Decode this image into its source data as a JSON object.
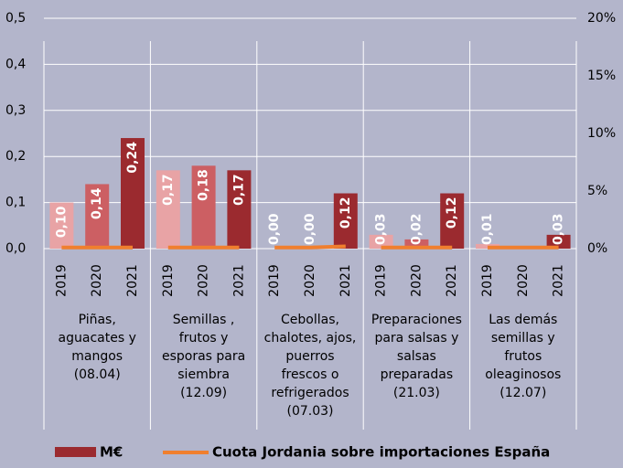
{
  "chart_data": {
    "type": "bar",
    "groups": [
      [
        "Piñas,",
        "aguacates y",
        "mangos",
        "(08.04)"
      ],
      [
        "Semillas ,",
        "frutos y",
        "esporas para",
        "siembra",
        "(12.09)"
      ],
      [
        "Cebollas,",
        "chalotes, ajos,",
        "puerros",
        "frescos o",
        "refrigerados",
        "(07.03)"
      ],
      [
        "Preparaciones",
        "para salsas y",
        "salsas",
        "preparadas",
        "(21.03)"
      ],
      [
        "Las demás",
        "semillas y",
        "frutos",
        "oleaginosos",
        "(12.07)"
      ]
    ],
    "years": [
      "2019",
      "2020",
      "2021"
    ],
    "year_colors": [
      "#e8a3a5",
      "#cc5f63",
      "#9b2a2f"
    ],
    "series": [
      {
        "name": "M€",
        "color": "#9b2a2f",
        "values": [
          0.1,
          0.14,
          0.24,
          0.17,
          0.18,
          0.17,
          0.0,
          0.0,
          0.12,
          0.03,
          0.02,
          0.12,
          0.01,
          0.0,
          0.03
        ],
        "value_labels": [
          "0,10",
          "0,14",
          "0,24",
          "0,17",
          "0,18",
          "0,17",
          "0,00",
          "0,00",
          "0,12",
          "0,03",
          "0,02",
          "0,12",
          "0,01",
          null,
          "0,03"
        ]
      },
      {
        "name": "Cuota Jordania sobre importaciones España",
        "type": "line",
        "axis": "y2",
        "color": "#f07f2e",
        "values": [
          0.1,
          0.1,
          0.1,
          0.1,
          0.1,
          0.1,
          0.1,
          0.1,
          0.2,
          0.1,
          0.1,
          0.1,
          0.1,
          0.1,
          0.1
        ]
      }
    ],
    "ylim": [
      0,
      0.5
    ],
    "yticks": [
      {
        "value": 0,
        "label": "0,0"
      },
      {
        "value": 0.1,
        "label": "0,1"
      },
      {
        "value": 0.2,
        "label": "0,2"
      },
      {
        "value": 0.3,
        "label": "0,3"
      },
      {
        "value": 0.4,
        "label": "0,4"
      },
      {
        "value": 0.5,
        "label": "0,5"
      }
    ],
    "y2lim": [
      0,
      20
    ],
    "y2ticks": [
      {
        "value": 0,
        "label": "0%"
      },
      {
        "value": 5,
        "label": "5%"
      },
      {
        "value": 10,
        "label": "10%"
      },
      {
        "value": 15,
        "label": "15%"
      },
      {
        "value": 20,
        "label": "20%"
      }
    ],
    "grid": true
  }
}
